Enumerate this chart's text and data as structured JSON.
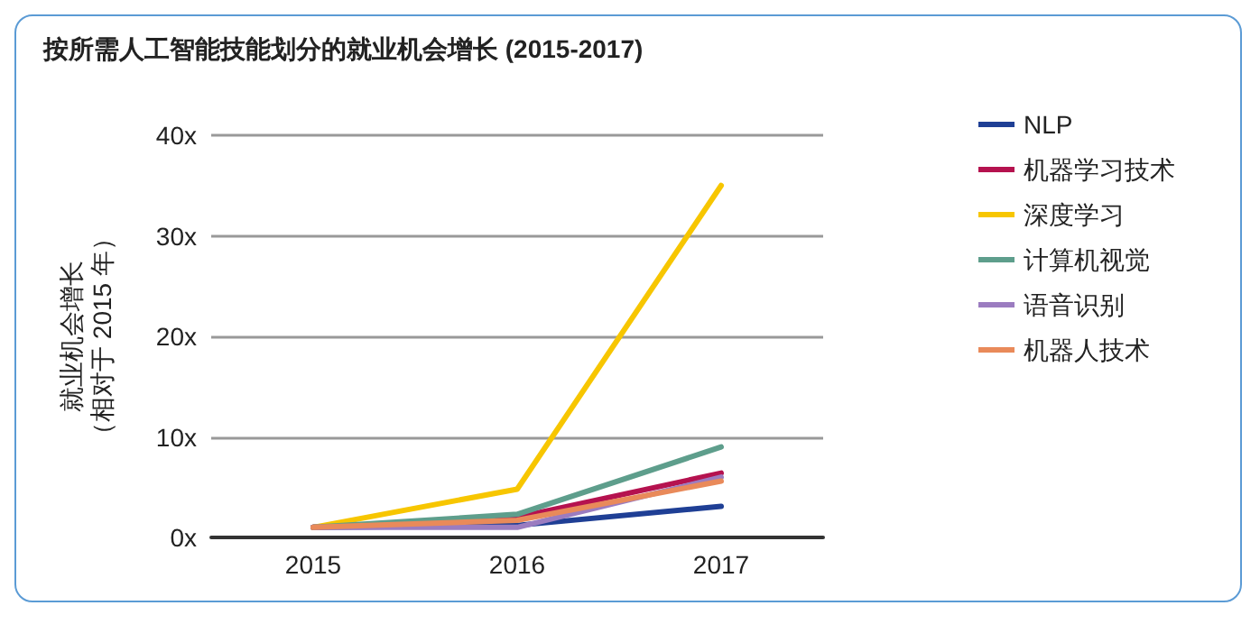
{
  "chart_data": {
    "type": "line",
    "title": "按所需人工智能技能划分的就业机会增长 (2015-2017)",
    "ylabel": "就业机会增长（相对于 2015 年）",
    "categories": [
      "2015",
      "2016",
      "2017"
    ],
    "series": [
      {
        "name": "NLP",
        "color": "#1f3f95",
        "values": [
          1,
          1.2,
          3.1
        ]
      },
      {
        "name": "机器学习技术",
        "color": "#b5124f",
        "values": [
          1,
          2,
          6.4
        ]
      },
      {
        "name": "深度学习",
        "color": "#f7c600",
        "values": [
          1,
          4.8,
          35
        ]
      },
      {
        "name": "计算机视觉",
        "color": "#5e9e8c",
        "values": [
          1,
          2.3,
          9
        ]
      },
      {
        "name": "语音识别",
        "color": "#9b7cc0",
        "values": [
          1,
          1,
          6
        ]
      },
      {
        "name": "机器人技术",
        "color": "#e98a5a",
        "values": [
          1,
          1.7,
          5.6
        ]
      }
    ],
    "ylim": [
      0,
      40
    ],
    "yticks": [
      {
        "value": 0,
        "label": "0x"
      },
      {
        "value": 10,
        "label": "10x"
      },
      {
        "value": 20,
        "label": "20x"
      },
      {
        "value": 30,
        "label": "30x"
      },
      {
        "value": 40,
        "label": "40x"
      }
    ],
    "grid": "y",
    "legend": "right",
    "marker": "none",
    "line_style": "solid"
  }
}
